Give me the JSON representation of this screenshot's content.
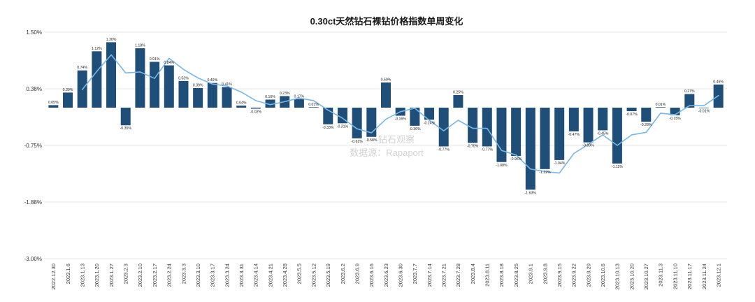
{
  "watermark": {
    "line1": "钻石观察",
    "line2": "数据源：Rapaport"
  },
  "colors": {
    "bar": "#1f4e79",
    "line": "#78b7e5",
    "grid": "#e4e4e4"
  },
  "chart_data": {
    "type": "bar",
    "title": "0.30ct天然钻石裸钻价格指数单周变化",
    "xlabel": "",
    "ylabel": "",
    "unit": "%",
    "grid": true,
    "ylim": [
      -3.0,
      1.5
    ],
    "yticks": [
      1.5,
      0.375,
      -0.75,
      -1.875,
      -3.0
    ],
    "ytick_labels": [
      "1.50%",
      "0.38%",
      "-0.75%",
      "-1.88%",
      "-3.00%"
    ],
    "categories": [
      "2022.12.30",
      "2023.1.6",
      "2023.1.13",
      "2023.1.20",
      "2023.1.27",
      "2023.2.3",
      "2023.2.10",
      "2023.2.17",
      "2023.2.24",
      "2023.3.3",
      "2023.3.10",
      "2023.3.17",
      "2023.3.24",
      "2023.3.31",
      "2023.4.14",
      "2023.4.21",
      "2023.4.28",
      "2023.5.5",
      "2023.5.12",
      "2023.5.19",
      "2023.6.2",
      "2023.6.9",
      "2023.6.16",
      "2023.6.23",
      "2023.6.30",
      "2023.7.7",
      "2023.7.14",
      "2023.7.21",
      "2023.7.28",
      "2023.8.4",
      "2023.8.11",
      "2023.8.18",
      "2023.8.25",
      "2023.9.1",
      "2023.9.8",
      "2023.9.15",
      "2023.9.22",
      "2023.9.29",
      "2023.10.6",
      "2023.10.13",
      "2023.10.20",
      "2023.10.27",
      "2023.11.3",
      "2023.11.10",
      "2023.11.17",
      "2023.11.24",
      "2023.12.1"
    ],
    "series": [
      {
        "type": "bar",
        "values": [
          0.05,
          0.3,
          0.74,
          1.12,
          1.3,
          -0.35,
          1.18,
          0.91,
          0.84,
          0.53,
          0.39,
          0.49,
          0.41,
          0.04,
          -0.02,
          0.16,
          0.23,
          0.17,
          0.01,
          -0.33,
          -0.31,
          -0.61,
          -0.58,
          0.5,
          -0.16,
          -0.36,
          -0.24,
          -0.77,
          0.25,
          -0.7,
          -0.77,
          -1.08,
          -0.96,
          -1.63,
          -1.22,
          -1.04,
          -0.47,
          -0.69,
          -0.45,
          -1.11,
          -0.07,
          -0.28,
          0.01,
          -0.15,
          0.27,
          -0.01,
          0.46
        ]
      },
      {
        "type": "line",
        "values": [
          null,
          null,
          0.36,
          0.72,
          1.05,
          0.69,
          0.71,
          0.58,
          0.98,
          0.76,
          0.59,
          0.47,
          0.43,
          0.31,
          0.14,
          0.06,
          0.12,
          0.19,
          0.14,
          -0.05,
          -0.21,
          -0.42,
          -0.5,
          -0.23,
          -0.08,
          -0.01,
          -0.25,
          -0.46,
          -0.25,
          -0.41,
          -0.41,
          -0.85,
          -0.94,
          -1.22,
          -1.27,
          -1.3,
          -0.91,
          -0.73,
          -0.54,
          -0.75,
          -0.54,
          -0.49,
          -0.11,
          -0.14,
          0.04,
          0.04,
          0.24
        ]
      }
    ],
    "data_labels": [
      "0.05%",
      "0.30%",
      "0.74%",
      "1.12%",
      "1.30%",
      "-0.35%",
      "1.18%",
      "0.91%",
      "0.84%",
      "0.53%",
      "0.39%",
      "0.49%",
      "0.41%",
      "0.04%",
      "-0.02%",
      "0.16%",
      "0.23%",
      "0.17%",
      "0.01%",
      "-0.33%",
      "-0.31%",
      "-0.61%",
      "-0.58%",
      "0.50%",
      "-0.16%",
      "-0.36%",
      "-0.24%",
      "-0.77%",
      "0.25%",
      "-0.70%",
      "-0.77%",
      "-1.08%",
      "-0.96%",
      "-1.63%",
      "-1.22%",
      "-1.04%",
      "-0.47%",
      "-0.69%",
      "-0.45%",
      "-1.11%",
      "-0.07%",
      "-0.28%",
      "0.01%",
      "-0.15%",
      "0.27%",
      "-0.01%",
      "0.46%"
    ]
  }
}
